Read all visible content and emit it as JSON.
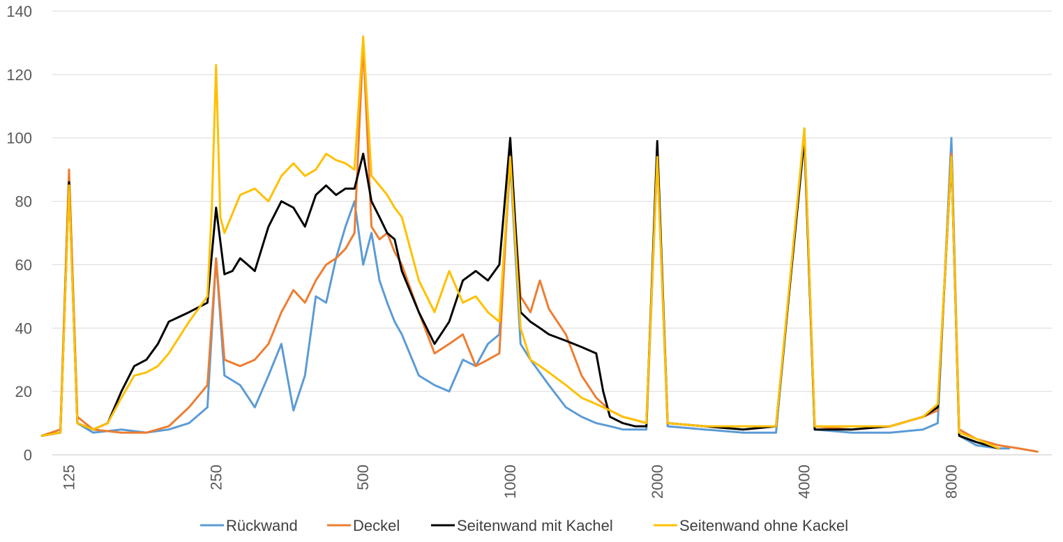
{
  "chart_data": {
    "type": "line",
    "title": "",
    "xlabel": "",
    "ylabel": "",
    "x_scale": "log",
    "xlim": [
      110,
      13000
    ],
    "ylim": [
      0,
      140
    ],
    "y_ticks": [
      "0",
      "20",
      "40",
      "60",
      "80",
      "100",
      "120",
      "140"
    ],
    "x_ticks": [
      "125",
      "250",
      "500",
      "1000",
      "2000",
      "4000",
      "8000"
    ],
    "grid": true,
    "legend_position": "bottom",
    "series": [
      {
        "name": "Rückwand",
        "color": "#5B9BD5",
        "x": [
          110,
          120,
          125,
          130,
          140,
          160,
          180,
          200,
          220,
          240,
          250,
          260,
          280,
          300,
          320,
          340,
          360,
          380,
          400,
          420,
          440,
          460,
          480,
          500,
          520,
          540,
          560,
          580,
          600,
          650,
          700,
          750,
          800,
          850,
          900,
          950,
          1000,
          1050,
          1100,
          1200,
          1300,
          1400,
          1500,
          1600,
          1700,
          1800,
          1900,
          2000,
          2100,
          2500,
          3000,
          3500,
          4000,
          4200,
          5000,
          6000,
          7000,
          7500,
          8000,
          8300,
          9000,
          10000,
          10500
        ],
        "values": [
          6,
          7,
          88,
          10,
          7,
          8,
          7,
          8,
          10,
          15,
          62,
          25,
          22,
          15,
          25,
          35,
          14,
          25,
          50,
          48,
          62,
          72,
          80,
          60,
          70,
          55,
          48,
          42,
          38,
          25,
          22,
          20,
          30,
          28,
          35,
          38,
          92,
          35,
          30,
          22,
          15,
          12,
          10,
          9,
          8,
          8,
          8,
          94,
          9,
          8,
          7,
          7,
          103,
          8,
          7,
          7,
          8,
          10,
          100,
          6,
          3,
          2,
          2
        ]
      },
      {
        "name": "Deckel",
        "color": "#ED7D31",
        "x": [
          110,
          120,
          125,
          130,
          140,
          160,
          180,
          200,
          220,
          240,
          250,
          260,
          280,
          300,
          320,
          340,
          360,
          380,
          400,
          420,
          440,
          460,
          480,
          500,
          520,
          540,
          560,
          580,
          600,
          650,
          700,
          750,
          800,
          850,
          900,
          950,
          1000,
          1050,
          1100,
          1150,
          1200,
          1300,
          1400,
          1500,
          1600,
          1700,
          1800,
          1900,
          2000,
          2100,
          2500,
          3000,
          3500,
          4000,
          4200,
          5000,
          6000,
          7000,
          7500,
          8000,
          8300,
          9000,
          10000,
          11000,
          12000
        ],
        "values": [
          6,
          8,
          90,
          12,
          8,
          7,
          7,
          9,
          15,
          22,
          62,
          30,
          28,
          30,
          35,
          45,
          52,
          48,
          55,
          60,
          62,
          65,
          70,
          130,
          72,
          68,
          70,
          64,
          60,
          45,
          32,
          35,
          38,
          28,
          30,
          32,
          95,
          50,
          45,
          55,
          46,
          38,
          25,
          18,
          14,
          12,
          11,
          10,
          96,
          10,
          9,
          8,
          9,
          102,
          9,
          8,
          9,
          12,
          14,
          95,
          8,
          5,
          3,
          2,
          1
        ]
      },
      {
        "name": "Seitenwand mit Kachel",
        "color": "#000000",
        "x": [
          110,
          120,
          125,
          130,
          140,
          150,
          160,
          170,
          180,
          190,
          200,
          220,
          240,
          250,
          260,
          270,
          280,
          290,
          300,
          320,
          340,
          360,
          380,
          400,
          420,
          440,
          460,
          480,
          500,
          520,
          540,
          560,
          580,
          600,
          650,
          700,
          750,
          800,
          850,
          900,
          950,
          1000,
          1050,
          1100,
          1150,
          1200,
          1300,
          1400,
          1500,
          1550,
          1600,
          1700,
          1800,
          1900,
          2000,
          2100,
          2500,
          3000,
          3500,
          4000,
          4200,
          5000,
          6000,
          7000,
          7500,
          8000,
          8300,
          9000,
          10000
        ],
        "values": [
          6,
          7,
          86,
          10,
          8,
          10,
          20,
          28,
          30,
          35,
          42,
          45,
          48,
          78,
          57,
          58,
          62,
          60,
          58,
          72,
          80,
          78,
          72,
          82,
          85,
          82,
          84,
          84,
          95,
          80,
          75,
          70,
          68,
          58,
          45,
          35,
          42,
          55,
          58,
          55,
          60,
          100,
          45,
          42,
          40,
          38,
          36,
          34,
          32,
          20,
          12,
          10,
          9,
          9,
          99,
          10,
          9,
          8,
          9,
          100,
          8,
          8,
          9,
          12,
          15,
          94,
          6,
          4,
          2
        ]
      },
      {
        "name": "Seitenwand ohne Kackel",
        "color": "#FFC000",
        "x": [
          110,
          120,
          125,
          130,
          140,
          150,
          160,
          170,
          180,
          190,
          200,
          220,
          240,
          245,
          250,
          255,
          260,
          280,
          300,
          320,
          340,
          360,
          380,
          400,
          420,
          440,
          460,
          480,
          500,
          520,
          540,
          560,
          580,
          600,
          650,
          700,
          750,
          800,
          850,
          900,
          950,
          1000,
          1050,
          1100,
          1150,
          1200,
          1300,
          1400,
          1500,
          1600,
          1700,
          1800,
          1900,
          2000,
          2100,
          2500,
          3000,
          3500,
          4000,
          4200,
          5000,
          6000,
          7000,
          7500,
          8000,
          8300,
          9000,
          10000
        ],
        "values": [
          6,
          7,
          85,
          10,
          8,
          10,
          18,
          25,
          26,
          28,
          32,
          42,
          50,
          78,
          123,
          75,
          70,
          82,
          84,
          80,
          88,
          92,
          88,
          90,
          95,
          93,
          92,
          90,
          132,
          88,
          85,
          82,
          78,
          75,
          55,
          45,
          58,
          48,
          50,
          45,
          42,
          94,
          40,
          30,
          28,
          26,
          22,
          18,
          16,
          14,
          12,
          11,
          10,
          94,
          10,
          9,
          9,
          9,
          103,
          9,
          9,
          9,
          12,
          16,
          94,
          7,
          5,
          2
        ]
      }
    ]
  }
}
